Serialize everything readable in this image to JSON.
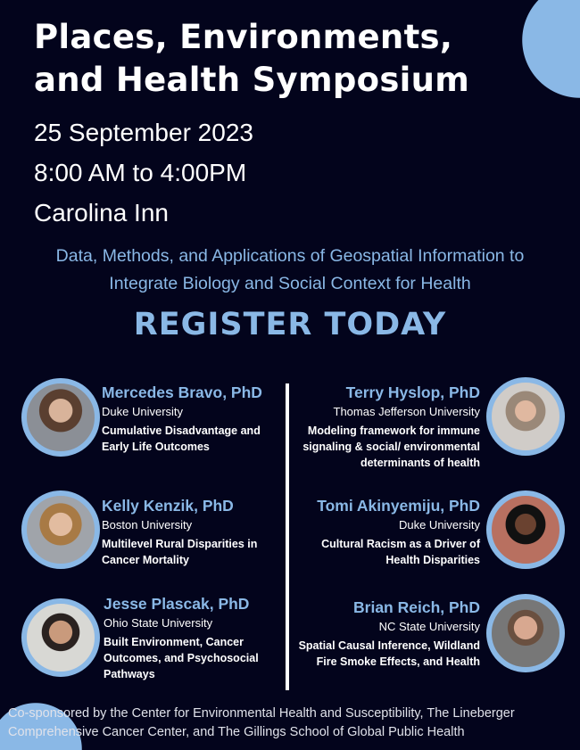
{
  "colors": {
    "background": "#03041c",
    "accent": "#8ab8e6"
  },
  "title": [
    "Places, Environments,",
    "and Health Symposium"
  ],
  "date": "25 September 2023",
  "time": "8:00 AM to 4:00PM",
  "venue": "Carolina Inn",
  "subtitle": [
    "Data, Methods, and Applications of Geospatial Information to",
    "Integrate Biology and Social Context for Health"
  ],
  "register": "REGISTER TODAY",
  "speakers": [
    {
      "name": "Mercedes Bravo, PhD",
      "affiliation": "Duke University",
      "topic": "Cumulative Disadvantage and Early Life Outcomes"
    },
    {
      "name": "Kelly Kenzik, PhD",
      "affiliation": "Boston University",
      "topic": "Multilevel Rural Disparities in Cancer Mortality"
    },
    {
      "name": "Jesse Plascak, PhD",
      "affiliation": "Ohio State University",
      "topic": "Built Environment, Cancer Outcomes, and Psychosocial Pathways"
    },
    {
      "name": "Terry Hyslop, PhD",
      "affiliation": "Thomas Jefferson University",
      "topic": "Modeling framework for immune signaling & social/ environmental determinants of health"
    },
    {
      "name": "Tomi Akinyemiju, PhD",
      "affiliation": "Duke University",
      "topic": "Cultural Racism as a Driver of Health Disparities"
    },
    {
      "name": "Brian Reich, PhD",
      "affiliation": "NC State University",
      "topic": "Spatial Causal Inference, Wildland Fire Smoke Effects, and Health"
    }
  ],
  "footer": [
    "Co-sponsored by the Center for Environmental Health and Susceptibility, The Lineberger",
    "Comprehensive Cancer Center, and The Gillings School of Global Public Health"
  ]
}
